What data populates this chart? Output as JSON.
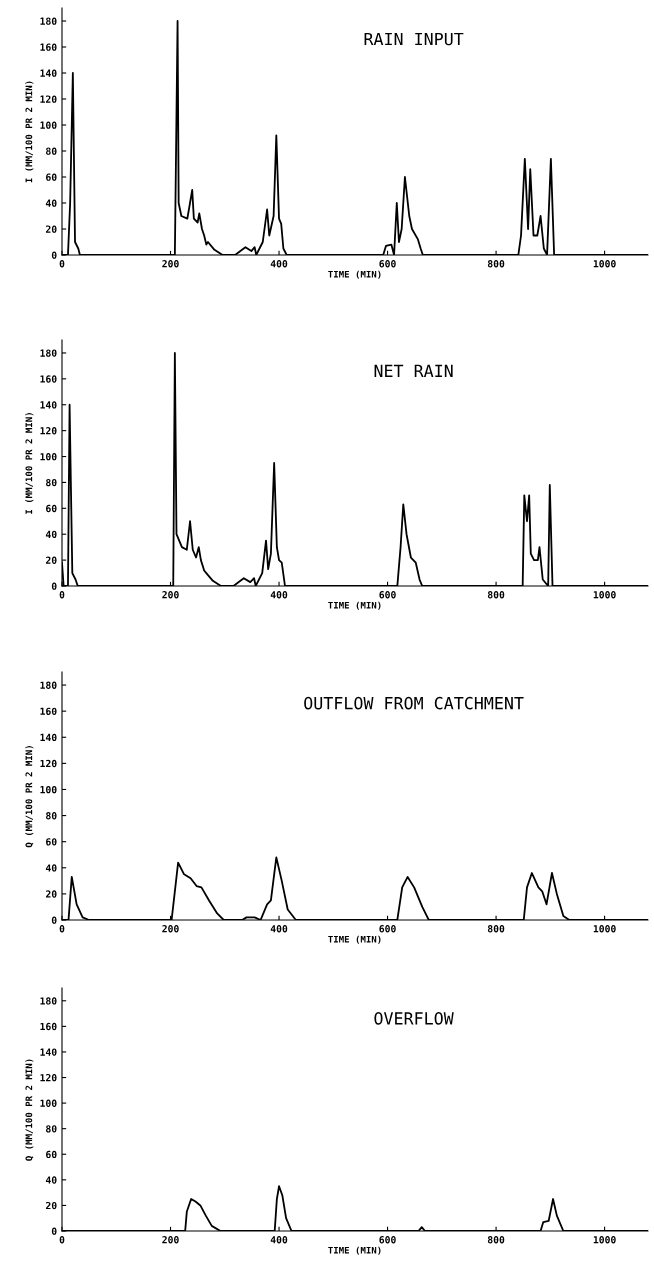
{
  "chart_data": [
    {
      "type": "line",
      "title": "RAIN INPUT",
      "xlabel": "TIME (MIN)",
      "ylabel": "I (MM/100 PR 2 MIN)",
      "xlim": [
        0,
        1080
      ],
      "ylim": [
        0,
        190
      ],
      "xticks": [
        0,
        200,
        400,
        600,
        800,
        1000
      ],
      "yticks": [
        0,
        20,
        40,
        60,
        80,
        100,
        120,
        140,
        160,
        180
      ],
      "series": [
        {
          "color": "#000000",
          "x": [
            0,
            11,
            15,
            20,
            24,
            30,
            33,
            208,
            213,
            215,
            220,
            231,
            240,
            243,
            250,
            253,
            258,
            262,
            266,
            269,
            281,
            296,
            319,
            338,
            349,
            355,
            358,
            370,
            378,
            382,
            390,
            395,
            400,
            404,
            408,
            414,
            592,
            597,
            607,
            612,
            617,
            621,
            626,
            632,
            640,
            645,
            656,
            661,
            665,
            841,
            846,
            853,
            859,
            863,
            869,
            876,
            882,
            888,
            894,
            901,
            907,
            1080
          ],
          "values": [
            0,
            0,
            40,
            140,
            10,
            5,
            0,
            0,
            180,
            40,
            30,
            28,
            50,
            28,
            25,
            32,
            20,
            15,
            8,
            10,
            4,
            0,
            0,
            6,
            3,
            6,
            0,
            10,
            35,
            15,
            30,
            92,
            28,
            24,
            5,
            0,
            0,
            7,
            8,
            0,
            40,
            10,
            20,
            60,
            30,
            20,
            12,
            5,
            0,
            0,
            15,
            74,
            20,
            66,
            15,
            15,
            30,
            5,
            0,
            74,
            0,
            0
          ]
        }
      ]
    },
    {
      "type": "line",
      "title": "NET RAIN",
      "xlabel": "TIME (MIN)",
      "ylabel": "I (MM/100 PR 2 MIN)",
      "xlim": [
        0,
        1080
      ],
      "ylim": [
        0,
        190
      ],
      "xticks": [
        0,
        200,
        400,
        600,
        800,
        1000
      ],
      "yticks": [
        0,
        20,
        40,
        60,
        80,
        100,
        120,
        140,
        160,
        180
      ],
      "series": [
        {
          "color": "#000000",
          "x": [
            0,
            3,
            11,
            14,
            19,
            25,
            29,
            205,
            208,
            211,
            221,
            230,
            236,
            241,
            247,
            252,
            256,
            262,
            266,
            278,
            293,
            316,
            335,
            347,
            354,
            357,
            369,
            376,
            380,
            385,
            391,
            396,
            400,
            405,
            411,
            618,
            624,
            629,
            635,
            643,
            652,
            659,
            664,
            849,
            852,
            857,
            861,
            864,
            870,
            877,
            880,
            886,
            896,
            899,
            904,
            1080
          ],
          "values": [
            18,
            0,
            0,
            140,
            10,
            5,
            0,
            0,
            180,
            40,
            30,
            28,
            50,
            28,
            22,
            30,
            20,
            12,
            10,
            4,
            0,
            0,
            6,
            3,
            6,
            0,
            10,
            35,
            13,
            25,
            95,
            30,
            20,
            18,
            0,
            0,
            30,
            63,
            40,
            22,
            18,
            5,
            0,
            0,
            70,
            50,
            70,
            25,
            20,
            20,
            30,
            5,
            0,
            78,
            0,
            0
          ]
        }
      ]
    },
    {
      "type": "line",
      "title": "OUTFLOW FROM CATCHMENT",
      "xlabel": "TIME (MIN)",
      "ylabel": "Q (MM/100 PR 2 MIN)",
      "xlim": [
        0,
        1080
      ],
      "ylim": [
        0,
        190
      ],
      "xticks": [
        0,
        200,
        400,
        600,
        800,
        1000
      ],
      "yticks": [
        0,
        20,
        40,
        60,
        80,
        100,
        120,
        140,
        160,
        180
      ],
      "series": [
        {
          "color": "#000000",
          "x": [
            0,
            12,
            18,
            27,
            38,
            50,
            202,
            214,
            225,
            237,
            248,
            257,
            271,
            286,
            298,
            332,
            340,
            355,
            366,
            378,
            385,
            395,
            405,
            416,
            431,
            618,
            627,
            637,
            649,
            664,
            676,
            851,
            857,
            866,
            878,
            885,
            893,
            903,
            912,
            924,
            935,
            1080
          ],
          "values": [
            0,
            0,
            33,
            12,
            2,
            0,
            0,
            44,
            35,
            32,
            26,
            25,
            15,
            5,
            0,
            0,
            2,
            2,
            0,
            12,
            15,
            48,
            30,
            8,
            0,
            0,
            25,
            33,
            25,
            10,
            0,
            0,
            25,
            36,
            25,
            22,
            12,
            36,
            20,
            3,
            0,
            0
          ]
        }
      ]
    },
    {
      "type": "line",
      "title": "OVERFLOW",
      "xlabel": "TIME (MIN)",
      "ylabel": "Q (MM/100 PR 2 MIN)",
      "xlim": [
        0,
        1080
      ],
      "ylim": [
        0,
        190
      ],
      "xticks": [
        0,
        200,
        400,
        600,
        800,
        1000
      ],
      "yticks": [
        0,
        20,
        40,
        60,
        80,
        100,
        120,
        140,
        160,
        180
      ],
      "series": [
        {
          "color": "#000000",
          "x": [
            0,
            227,
            230,
            238,
            246,
            255,
            265,
            276,
            292,
            392,
            396,
            400,
            406,
            413,
            423,
            657,
            663,
            669,
            882,
            887,
            897,
            905,
            912,
            924,
            1080
          ],
          "values": [
            0,
            0,
            15,
            25,
            23,
            20,
            12,
            4,
            0,
            0,
            25,
            35,
            28,
            10,
            0,
            0,
            3,
            0,
            0,
            7,
            8,
            25,
            12,
            0,
            0
          ]
        }
      ]
    }
  ]
}
